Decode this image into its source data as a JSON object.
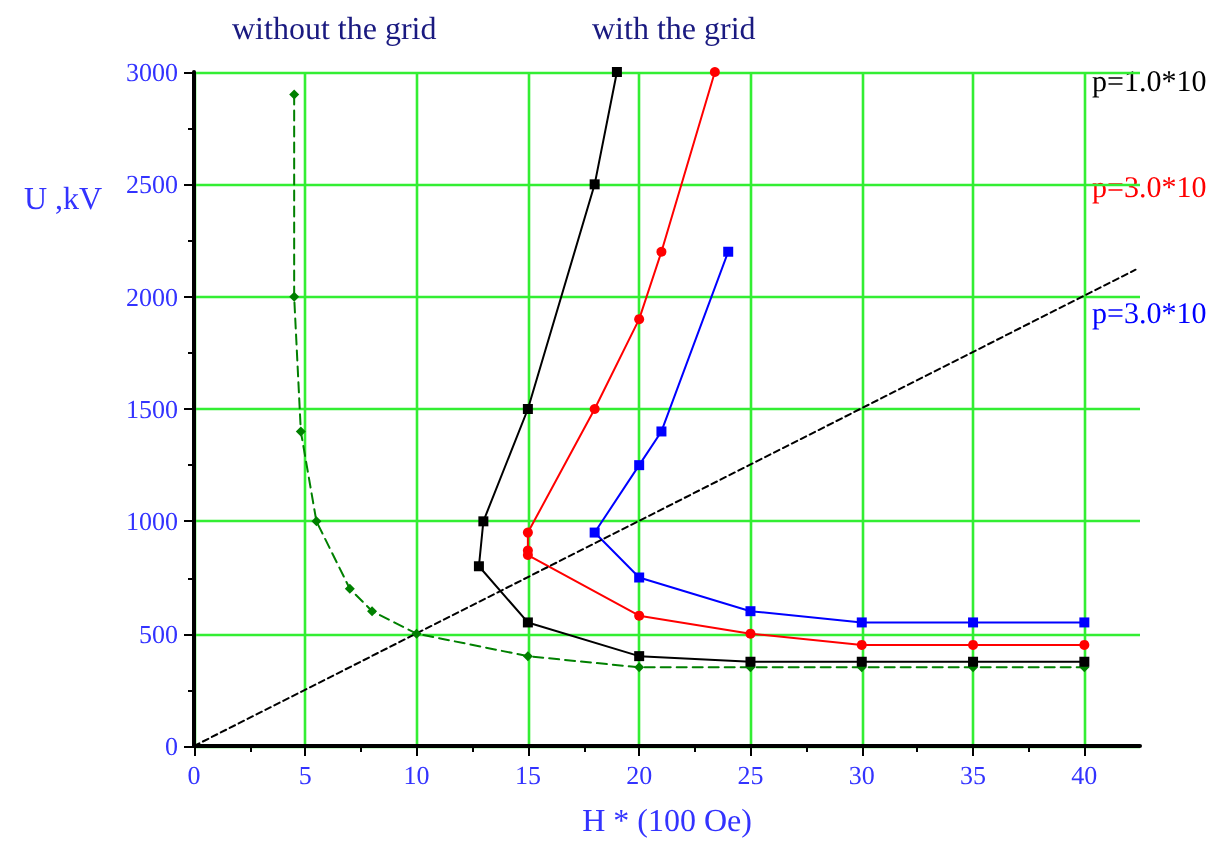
{
  "chart_data": {
    "type": "line",
    "xlabel": "H * (100 Oe)",
    "ylabel": "U ,kV",
    "annotations": [
      "without the grid",
      "with the grid"
    ],
    "xlim": [
      0,
      42.5
    ],
    "xticks": [
      0,
      5,
      10,
      15,
      20,
      25,
      30,
      35,
      40
    ],
    "ylim": [
      0,
      3000
    ],
    "yticks": [
      0,
      500,
      1000,
      1500,
      2000,
      2500,
      3000
    ],
    "grid": true,
    "legend": false,
    "series": [
      {
        "color": "#008000",
        "marker": "diamond",
        "line_style": "dashed",
        "x": [
          4.5,
          4.5,
          4.8,
          5.5,
          7,
          8,
          10,
          15,
          20,
          25,
          30,
          35,
          40
        ],
        "values": [
          2900,
          2000,
          1400,
          1000,
          700,
          600,
          500,
          400,
          350,
          350,
          350,
          350,
          350
        ]
      },
      {
        "name": "p=1.0*10",
        "color": "#000000",
        "marker": "square",
        "line_style": "solid",
        "x": [
          19,
          18,
          15,
          13,
          12.8,
          15,
          20,
          25,
          30,
          35,
          40
        ],
        "values": [
          3000,
          2500,
          1500,
          1000,
          800,
          550,
          400,
          375,
          375,
          375,
          375
        ]
      },
      {
        "name": "p=3.0*10",
        "color": "#ff0000",
        "marker": "circle",
        "line_style": "solid",
        "x": [
          23.4,
          21,
          20,
          18,
          15,
          15,
          15,
          20,
          25,
          30,
          35,
          40
        ],
        "values": [
          3000,
          2200,
          1900,
          1500,
          950,
          870,
          850,
          580,
          500,
          450,
          450,
          450
        ]
      },
      {
        "name": "p=3.0*10",
        "color": "#0000ff",
        "marker": "square",
        "line_style": "solid",
        "x": [
          24,
          21,
          20,
          18,
          20,
          25,
          30,
          35,
          40
        ],
        "values": [
          2200,
          1400,
          1250,
          950,
          750,
          600,
          550,
          550,
          550
        ]
      },
      {
        "color": "#000000",
        "marker": "none",
        "line_style": "dotted",
        "x": [
          0,
          42.3
        ],
        "values": [
          0,
          2120
        ]
      }
    ]
  }
}
